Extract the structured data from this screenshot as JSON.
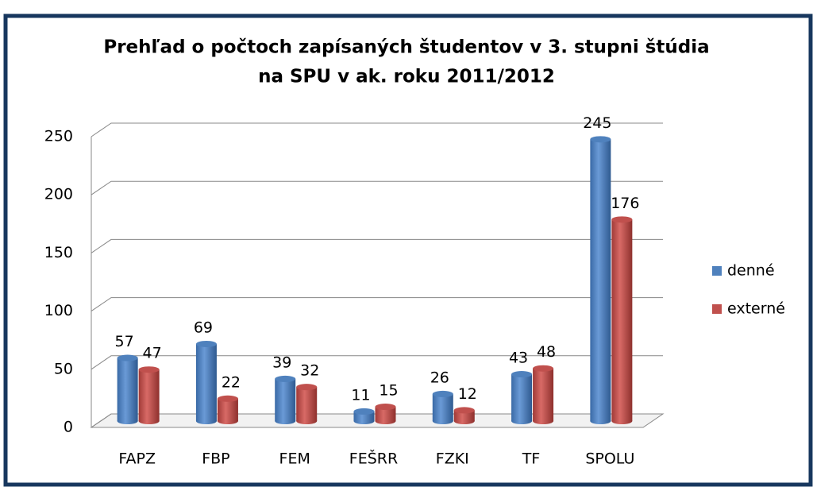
{
  "chart_data": {
    "type": "bar3d",
    "title": "Prehľad o počtoch zapísaných študentov v 3. stupni štúdia",
    "subtitle": "na SPU v ak. roku 2011/2012",
    "categories": [
      "FAPZ",
      "FBP",
      "FEM",
      "FEŠRR",
      "FZKI",
      "TF",
      "SPOLU"
    ],
    "series": [
      {
        "name": "denné",
        "color": "#4f81bd",
        "values": [
          57,
          69,
          39,
          11,
          26,
          43,
          245
        ]
      },
      {
        "name": "externé",
        "color": "#c0504d",
        "values": [
          47,
          22,
          32,
          15,
          12,
          48,
          176
        ]
      }
    ],
    "ylim": [
      0,
      250
    ],
    "yticks": [
      0,
      50,
      100,
      150,
      200,
      250
    ],
    "grid": true,
    "legend": "right"
  }
}
